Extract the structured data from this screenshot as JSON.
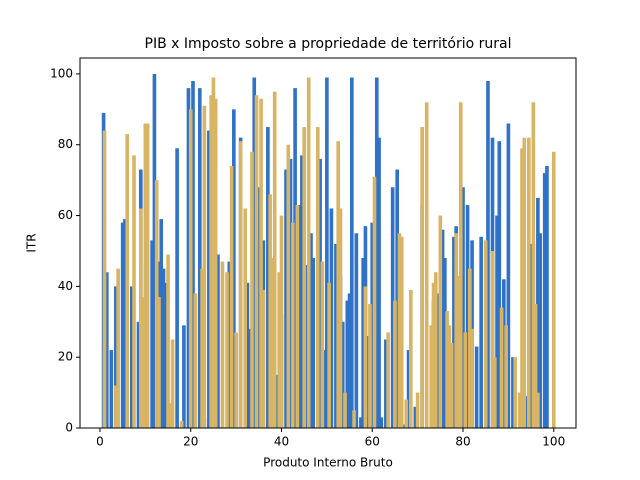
{
  "chart_data": {
    "type": "bar",
    "title": "PIB x Imposto sobre a propriedade de território rural",
    "x_label": "Produto Interno Bruto",
    "y_label": "ITR",
    "xlim": [
      -4.4,
      104.9
    ],
    "ylim": [
      0,
      104.5
    ],
    "xticks": [
      0,
      20,
      40,
      60,
      80,
      100
    ],
    "yticks": [
      0,
      20,
      40,
      60,
      80,
      100
    ],
    "bar_width": 0.8,
    "series": [
      {
        "color": "#2f72c8",
        "x": [
          0.8,
          1.5,
          2.5,
          3.5,
          5,
          5.5,
          6,
          7,
          8.5,
          9,
          10,
          11.5,
          12,
          13,
          13.5,
          14,
          14.7,
          17,
          18.5,
          19.5,
          20.5,
          21,
          22,
          23,
          24,
          24.5,
          25.5,
          26,
          28.5,
          29.5,
          31,
          32.5,
          33,
          34,
          35,
          36,
          37,
          38.5,
          39,
          40,
          41,
          42,
          43,
          44,
          44.5,
          45.5,
          46.5,
          47,
          48.5,
          49.5,
          50,
          51,
          52,
          53,
          53.5,
          54.5,
          55,
          55.5,
          56.5,
          57.5,
          58,
          58.5,
          59,
          60,
          61,
          61.5,
          62,
          63,
          64.5,
          65.5,
          67,
          68,
          69.5,
          71,
          73.5,
          74.5,
          75.5,
          76,
          77.5,
          78,
          78.5,
          79.5,
          80,
          81,
          82,
          83,
          84,
          85.5,
          86.5,
          87.5,
          88,
          89,
          90,
          91,
          93,
          94,
          95,
          95.5,
          96.5,
          97,
          98,
          98.5
        ],
        "values": [
          89,
          44,
          22,
          40,
          58,
          59,
          53,
          40,
          30,
          73,
          46,
          53,
          100,
          47,
          59,
          45,
          41,
          79,
          29,
          96,
          98,
          38,
          96,
          3,
          84,
          42,
          83,
          49,
          47,
          90,
          82,
          41,
          28,
          99,
          68,
          53,
          85,
          27,
          15,
          32,
          73,
          76,
          96,
          63,
          77,
          46,
          55,
          48,
          76,
          22,
          99,
          62,
          52,
          43,
          30,
          36,
          38,
          99,
          55,
          3,
          48,
          57,
          26,
          58,
          99,
          82,
          3,
          25,
          68,
          73,
          1,
          22,
          6,
          63,
          36,
          38,
          56,
          48,
          20,
          54,
          57,
          22,
          68,
          63,
          53,
          23,
          54,
          98,
          82,
          60,
          81,
          42,
          86,
          20,
          10,
          9,
          52,
          52,
          65,
          55,
          72,
          74
        ]
      },
      {
        "color": "#d8b465",
        "x": [
          1,
          3.5,
          4,
          6,
          7.5,
          9,
          9.5,
          10,
          10.5,
          12.5,
          13,
          15,
          15.5,
          16,
          18,
          20,
          21,
          22.5,
          23,
          24.5,
          25,
          25.5,
          27,
          28,
          29,
          30,
          31,
          32,
          33.5,
          34.5,
          35.5,
          36,
          37.5,
          38,
          38.5,
          39.5,
          40,
          41.5,
          42.5,
          43.5,
          45,
          46,
          48,
          49,
          50.5,
          52.5,
          53,
          54,
          56,
          58.5,
          59.5,
          60.5,
          63.5,
          65,
          66,
          66.5,
          67.5,
          68.5,
          70,
          71,
          72,
          73,
          73.5,
          74,
          75,
          76.5,
          77,
          77.5,
          78.5,
          79,
          79.5,
          80.5,
          81.5,
          82,
          85,
          86.5,
          87,
          88.5,
          89.5,
          91.5,
          92.5,
          93,
          93.5,
          94.5,
          95.5,
          96,
          96.5,
          100
        ],
        "values": [
          84,
          12,
          45,
          83,
          77,
          62,
          37,
          86,
          86,
          70,
          37,
          49,
          7,
          25,
          2,
          90,
          38,
          45,
          91,
          94,
          99,
          93,
          47,
          44,
          74,
          27,
          81,
          62,
          78,
          94,
          93,
          39,
          66,
          48,
          95,
          44,
          60,
          80,
          58,
          63,
          85,
          99,
          85,
          47,
          41,
          81,
          62,
          10,
          5,
          40,
          35,
          71,
          27,
          36,
          55,
          54,
          8,
          39,
          10,
          85,
          92,
          29,
          41,
          44,
          60,
          33,
          29,
          24,
          55,
          43,
          92,
          27,
          45,
          28,
          53,
          50,
          20,
          34,
          29,
          20,
          10,
          79,
          82,
          82,
          92,
          35,
          10,
          78
        ]
      }
    ]
  }
}
